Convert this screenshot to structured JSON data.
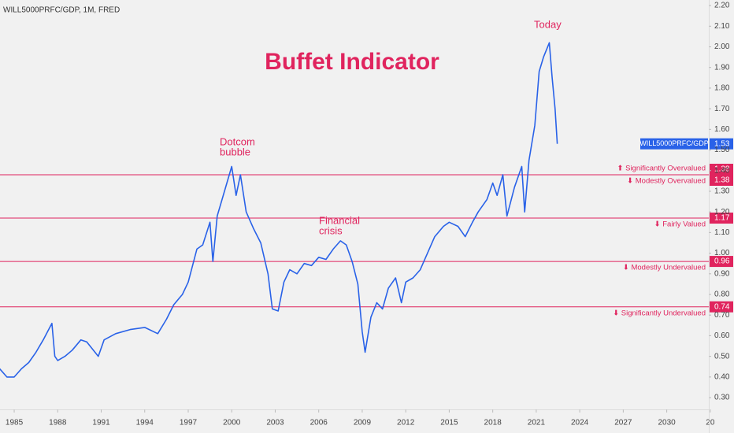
{
  "chart_data": {
    "type": "line",
    "title": "Buffet Indicator",
    "subtitle": "WILL5000PRFC/GDP, 1M, FRED",
    "annotations": [
      [
        "Dotcom",
        "bubble"
      ],
      [
        "Financial",
        "crisis"
      ],
      [
        "Today"
      ]
    ],
    "series": [
      {
        "name": "WILL5000PRFC/GDP",
        "color": "#2962e8",
        "x": [
          1984.0,
          1984.5,
          1985.0,
          1985.5,
          1986.0,
          1986.5,
          1987.0,
          1987.6,
          1987.8,
          1988.0,
          1988.5,
          1989.0,
          1989.6,
          1990.0,
          1990.8,
          1991.2,
          1992.0,
          1993.0,
          1994.0,
          1994.9,
          1995.5,
          1996.0,
          1996.6,
          1997.0,
          1997.6,
          1998.0,
          1998.5,
          1998.7,
          1999.0,
          1999.5,
          2000.0,
          2000.3,
          2000.6,
          2001.0,
          2001.5,
          2002.0,
          2002.5,
          2002.8,
          2003.2,
          2003.6,
          2004.0,
          2004.5,
          2005.0,
          2005.5,
          2006.0,
          2006.5,
          2007.0,
          2007.5,
          2007.9,
          2008.3,
          2008.7,
          2009.0,
          2009.2,
          2009.6,
          2010.0,
          2010.4,
          2010.8,
          2011.3,
          2011.7,
          2012.0,
          2012.5,
          2013.0,
          2013.5,
          2014.0,
          2014.6,
          2015.0,
          2015.6,
          2016.1,
          2016.6,
          2017.0,
          2017.6,
          2018.0,
          2018.3,
          2018.7,
          2018.98,
          2019.5,
          2020.0,
          2020.2,
          2020.5,
          2020.9,
          2021.2,
          2021.5,
          2021.9,
          2022.1,
          2022.3,
          2022.45
        ],
        "values": [
          0.44,
          0.4,
          0.4,
          0.44,
          0.47,
          0.52,
          0.58,
          0.66,
          0.5,
          0.48,
          0.5,
          0.53,
          0.58,
          0.57,
          0.5,
          0.58,
          0.61,
          0.63,
          0.64,
          0.61,
          0.68,
          0.75,
          0.8,
          0.86,
          1.02,
          1.04,
          1.15,
          0.96,
          1.18,
          1.3,
          1.42,
          1.28,
          1.38,
          1.2,
          1.12,
          1.05,
          0.9,
          0.73,
          0.72,
          0.86,
          0.92,
          0.9,
          0.95,
          0.94,
          0.98,
          0.97,
          1.02,
          1.06,
          1.04,
          0.96,
          0.85,
          0.62,
          0.52,
          0.69,
          0.76,
          0.73,
          0.83,
          0.88,
          0.76,
          0.86,
          0.88,
          0.92,
          1.0,
          1.08,
          1.13,
          1.15,
          1.13,
          1.08,
          1.15,
          1.2,
          1.26,
          1.34,
          1.28,
          1.38,
          1.18,
          1.32,
          1.42,
          1.2,
          1.45,
          1.62,
          1.88,
          1.95,
          2.02,
          1.85,
          1.7,
          1.53
        ]
      }
    ],
    "levels": [
      {
        "value": 1.38,
        "label": "⬆ Significantly Overvalued"
      },
      {
        "value": 1.38,
        "label": "⬇ Modestly Overvalued"
      },
      {
        "value": 1.17,
        "label": "⬇ Fairly Valued"
      },
      {
        "value": 0.96,
        "label": "⬇ Modestly Undervalued"
      },
      {
        "value": 0.74,
        "label": "⬇ Significantly Undervalued"
      }
    ],
    "level_color": "#e0245e",
    "xlim": [
      1984.02,
      2032.9
    ],
    "ylim": [
      0.243,
      2.227
    ],
    "xticks": [
      1985,
      1988,
      1991,
      1994,
      1997,
      2000,
      2003,
      2006,
      2009,
      2012,
      2015,
      2018,
      2021,
      2024,
      2027,
      2030,
      {
        "value": 2033,
        "label": "20"
      }
    ],
    "yticks": [
      {
        "value": 0.3,
        "label": "0.30"
      },
      {
        "value": 0.4,
        "label": "0.40"
      },
      {
        "value": 0.5,
        "label": "0.50"
      },
      {
        "value": 0.6,
        "label": "0.60"
      },
      {
        "value": 0.7,
        "label": "0.70"
      },
      {
        "value": 0.8,
        "label": "0.80"
      },
      {
        "value": 0.9,
        "label": "0.90"
      },
      {
        "value": 1.0,
        "label": "1.00"
      },
      {
        "value": 1.1,
        "label": "1.10"
      },
      {
        "value": 1.2,
        "label": "1.20"
      },
      {
        "value": 1.3,
        "label": "1.30"
      },
      {
        "value": 1.4,
        "label": "1.40"
      },
      {
        "value": 1.5,
        "label": "1.50"
      },
      {
        "value": 1.6,
        "label": "1.60"
      },
      {
        "value": 1.7,
        "label": "1.70"
      },
      {
        "value": 1.8,
        "label": "1.80"
      },
      {
        "value": 1.9,
        "label": "1.90"
      },
      {
        "value": 2.0,
        "label": "2.00"
      },
      {
        "value": 2.1,
        "label": "2.10"
      },
      {
        "value": 2.2,
        "label": "2.20"
      }
    ]
  }
}
